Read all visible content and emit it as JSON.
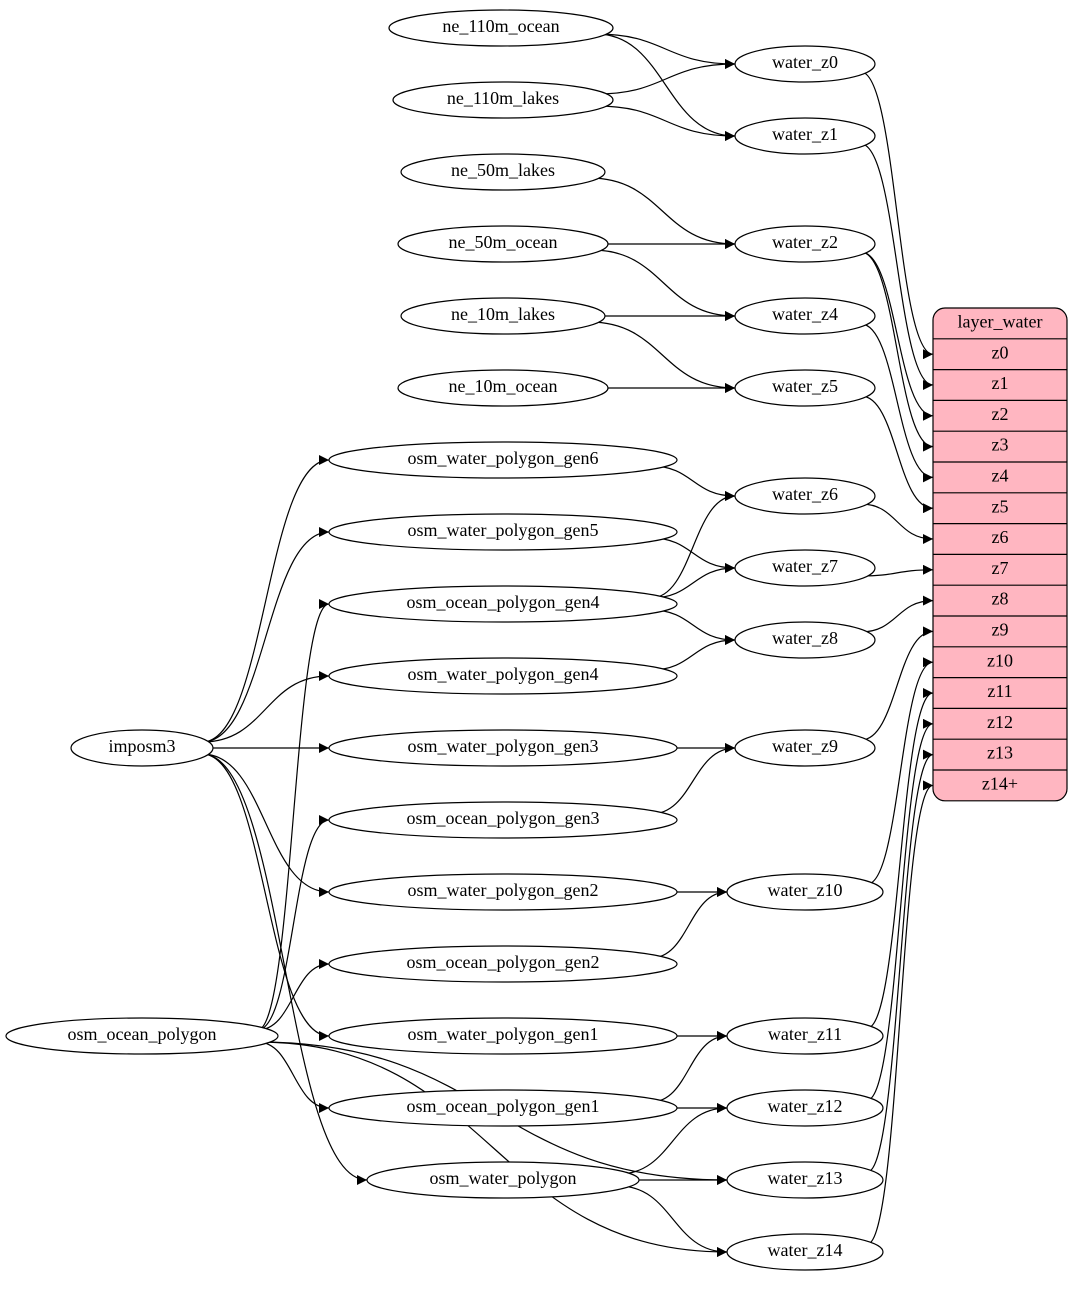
{
  "nodes": [
    {
      "label": "ne_110m_ocean"
    },
    {
      "label": "ne_110m_lakes"
    },
    {
      "label": "ne_50m_lakes"
    },
    {
      "label": "ne_50m_ocean"
    },
    {
      "label": "ne_10m_lakes"
    },
    {
      "label": "ne_10m_ocean"
    },
    {
      "label": "osm_water_polygon_gen6"
    },
    {
      "label": "osm_water_polygon_gen5"
    },
    {
      "label": "osm_ocean_polygon_gen4"
    },
    {
      "label": "osm_water_polygon_gen4"
    },
    {
      "label": "osm_water_polygon_gen3"
    },
    {
      "label": "osm_ocean_polygon_gen3"
    },
    {
      "label": "osm_water_polygon_gen2"
    },
    {
      "label": "osm_ocean_polygon_gen2"
    },
    {
      "label": "osm_water_polygon_gen1"
    },
    {
      "label": "osm_ocean_polygon_gen1"
    },
    {
      "label": "osm_water_polygon"
    },
    {
      "label": "imposm3"
    },
    {
      "label": "osm_ocean_polygon"
    },
    {
      "label": "water_z0"
    },
    {
      "label": "water_z1"
    },
    {
      "label": "water_z2"
    },
    {
      "label": "water_z4"
    },
    {
      "label": "water_z5"
    },
    {
      "label": "water_z6"
    },
    {
      "label": "water_z7"
    },
    {
      "label": "water_z8"
    },
    {
      "label": "water_z9"
    },
    {
      "label": "water_z10"
    },
    {
      "label": "water_z11"
    },
    {
      "label": "water_z12"
    },
    {
      "label": "water_z13"
    },
    {
      "label": "water_z14"
    }
  ],
  "layer_water": {
    "title": "layer_water",
    "fields": [
      "z0",
      "z1",
      "z2",
      "z3",
      "z4",
      "z5",
      "z6",
      "z7",
      "z8",
      "z9",
      "z10",
      "z11",
      "z12",
      "z13",
      "z14+"
    ]
  }
}
